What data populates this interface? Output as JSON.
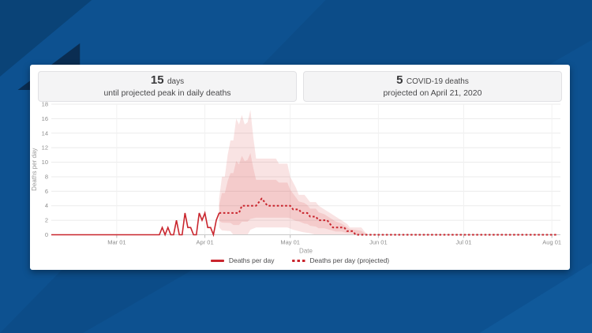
{
  "page": {
    "colors": {
      "background_blue": "#0d5190",
      "background_blue_dark": "#0a4377",
      "background_navy": "#0a2d52",
      "card_background": "#ffffff",
      "stat_box_background": "#f4f4f5",
      "line_red": "#c9252d",
      "band_pink": "#f7d9d8"
    }
  },
  "stats": [
    {
      "value": "15",
      "unit": "days",
      "caption": "until projected peak in daily deaths"
    },
    {
      "value": "5",
      "unit": "COVID-19 deaths",
      "caption": "projected on April 21, 2020"
    }
  ],
  "chart_data": {
    "type": "line",
    "title": "",
    "xlabel": "Date",
    "ylabel": "Deaths per day",
    "ylim": [
      0,
      18
    ],
    "y_ticks": [
      0,
      2,
      4,
      6,
      8,
      10,
      12,
      14,
      16,
      18
    ],
    "grid": true,
    "legend_position": "bottom",
    "x_domain": [
      "2020-02-07",
      "2020-08-04"
    ],
    "x_ticks": [
      {
        "date": "2020-03-01",
        "label": "Mar 01"
      },
      {
        "date": "2020-04-01",
        "label": "Apr 01"
      },
      {
        "date": "2020-05-01",
        "label": "May 01"
      },
      {
        "date": "2020-06-01",
        "label": "Jun 01"
      },
      {
        "date": "2020-07-01",
        "label": "Jul 01"
      },
      {
        "date": "2020-08-01",
        "label": "Aug 01"
      }
    ],
    "colors": {
      "line": "#c9252d",
      "band": "#d9534f"
    },
    "series": [
      {
        "name": "Deaths per day",
        "style": "solid",
        "points": [
          [
            "2020-02-07",
            0
          ],
          [
            "2020-03-14",
            0
          ],
          [
            "2020-03-15",
            0
          ],
          [
            "2020-03-16",
            0
          ],
          [
            "2020-03-17",
            1
          ],
          [
            "2020-03-18",
            0
          ],
          [
            "2020-03-19",
            1
          ],
          [
            "2020-03-20",
            0
          ],
          [
            "2020-03-21",
            0
          ],
          [
            "2020-03-22",
            2
          ],
          [
            "2020-03-23",
            0
          ],
          [
            "2020-03-24",
            0
          ],
          [
            "2020-03-25",
            3
          ],
          [
            "2020-03-26",
            1
          ],
          [
            "2020-03-27",
            1
          ],
          [
            "2020-03-28",
            0
          ],
          [
            "2020-03-29",
            0
          ],
          [
            "2020-03-30",
            3
          ],
          [
            "2020-03-31",
            2
          ],
          [
            "2020-04-01",
            3
          ],
          [
            "2020-04-02",
            1
          ],
          [
            "2020-04-03",
            1
          ],
          [
            "2020-04-04",
            0
          ],
          [
            "2020-04-05",
            2
          ],
          [
            "2020-04-06",
            3
          ]
        ]
      },
      {
        "name": "Deaths per day (projected)",
        "style": "dashed",
        "points": [
          [
            "2020-04-06",
            3
          ],
          [
            "2020-04-13",
            3
          ],
          [
            "2020-04-14",
            4
          ],
          [
            "2020-04-19",
            4
          ],
          [
            "2020-04-20",
            4.5
          ],
          [
            "2020-04-21",
            5
          ],
          [
            "2020-04-22",
            4.5
          ],
          [
            "2020-04-23",
            4
          ],
          [
            "2020-05-01",
            4
          ],
          [
            "2020-05-02",
            3.5
          ],
          [
            "2020-05-04",
            3.5
          ],
          [
            "2020-05-05",
            3
          ],
          [
            "2020-05-07",
            3
          ],
          [
            "2020-05-08",
            2.5
          ],
          [
            "2020-05-10",
            2.5
          ],
          [
            "2020-05-11",
            2
          ],
          [
            "2020-05-14",
            2
          ],
          [
            "2020-05-15",
            1.5
          ],
          [
            "2020-05-16",
            1
          ],
          [
            "2020-05-20",
            1
          ],
          [
            "2020-05-21",
            0.5
          ],
          [
            "2020-05-23",
            0.5
          ],
          [
            "2020-05-24",
            0
          ],
          [
            "2020-08-03",
            0
          ]
        ]
      }
    ],
    "band": {
      "name": "projection uncertainty interval",
      "upper": [
        [
          "2020-04-06",
          5
        ],
        [
          "2020-04-07",
          8
        ],
        [
          "2020-04-08",
          8
        ],
        [
          "2020-04-09",
          11
        ],
        [
          "2020-04-10",
          13
        ],
        [
          "2020-04-11",
          13
        ],
        [
          "2020-04-12",
          16
        ],
        [
          "2020-04-13",
          15.2
        ],
        [
          "2020-04-14",
          16.5
        ],
        [
          "2020-04-15",
          15.2
        ],
        [
          "2020-04-16",
          15.5
        ],
        [
          "2020-04-17",
          17.2
        ],
        [
          "2020-04-18",
          13.5
        ],
        [
          "2020-04-19",
          10.5
        ],
        [
          "2020-04-26",
          10.5
        ],
        [
          "2020-04-27",
          9.8
        ],
        [
          "2020-04-30",
          9.8
        ],
        [
          "2020-05-01",
          8
        ],
        [
          "2020-05-03",
          6.5
        ],
        [
          "2020-05-04",
          5.5
        ],
        [
          "2020-05-06",
          5.5
        ],
        [
          "2020-05-07",
          5
        ],
        [
          "2020-05-08",
          4.5
        ],
        [
          "2020-05-10",
          4.5
        ],
        [
          "2020-05-11",
          4
        ],
        [
          "2020-05-13",
          3.5
        ],
        [
          "2020-05-15",
          3
        ],
        [
          "2020-05-17",
          2.5
        ],
        [
          "2020-05-19",
          2
        ],
        [
          "2020-05-21",
          1.5
        ],
        [
          "2020-05-22",
          1
        ],
        [
          "2020-05-26",
          1
        ],
        [
          "2020-05-27",
          0.5
        ],
        [
          "2020-05-28",
          0.1
        ]
      ],
      "lower": [
        [
          "2020-04-06",
          1
        ],
        [
          "2020-04-07",
          0.6
        ],
        [
          "2020-04-10",
          0.5
        ],
        [
          "2020-04-11",
          0
        ],
        [
          "2020-04-16",
          0
        ],
        [
          "2020-04-17",
          0.7
        ],
        [
          "2020-04-19",
          1
        ],
        [
          "2020-04-30",
          1
        ],
        [
          "2020-05-02",
          0.7
        ],
        [
          "2020-05-05",
          0.4
        ],
        [
          "2020-05-08",
          0.2
        ],
        [
          "2020-05-10",
          0
        ],
        [
          "2020-05-28",
          0
        ]
      ]
    }
  },
  "legend": {
    "items": [
      {
        "label": "Deaths per day",
        "style": "solid"
      },
      {
        "label": "Deaths per day (projected)",
        "style": "dashed"
      }
    ]
  }
}
